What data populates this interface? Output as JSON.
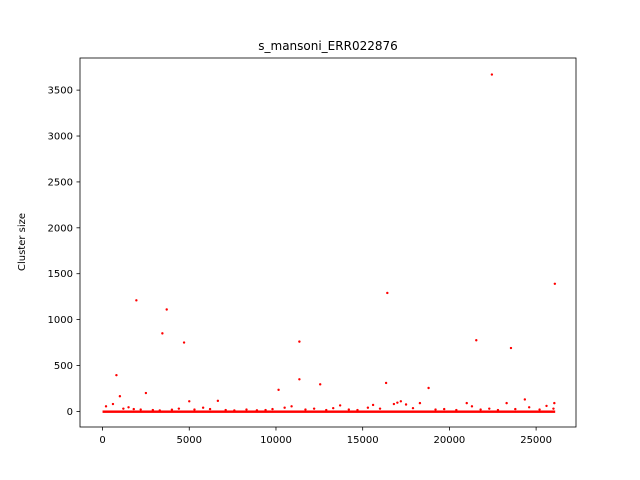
{
  "chart_data": {
    "type": "scatter",
    "title": "s_mansoni_ERR022876",
    "xlabel": "",
    "ylabel": "Cluster size",
    "xlim": [
      -1300,
      27300
    ],
    "ylim": [
      -170,
      3850
    ],
    "xticks": [
      0,
      5000,
      10000,
      15000,
      20000,
      25000
    ],
    "yticks": [
      0,
      500,
      1000,
      1500,
      2000,
      2500,
      3000,
      3500
    ],
    "grid": false,
    "legend": "none",
    "marker_color": "#ff0000",
    "points_x": [
      22450,
      26080,
      16420,
      1950,
      3700,
      3450,
      4700,
      11350,
      21550,
      23550,
      800,
      11350,
      16350,
      12550,
      18800,
      10150,
      2500,
      1000,
      24350,
      5000,
      6650,
      200,
      600,
      1200,
      1500,
      1800,
      2200,
      2900,
      3300,
      4000,
      4400,
      5300,
      5800,
      6200,
      7100,
      7600,
      8300,
      8900,
      9400,
      9800,
      10500,
      10900,
      11700,
      12200,
      12900,
      13300,
      13700,
      14200,
      14700,
      15300,
      15600,
      16000,
      16800,
      17000,
      17200,
      17500,
      17900,
      18300,
      19200,
      19700,
      20400,
      21000,
      21300,
      21800,
      22300,
      22800,
      23300,
      23800,
      24600,
      25200,
      25600,
      26000,
      26050
    ],
    "points_y": [
      3670,
      1390,
      1290,
      1210,
      1110,
      850,
      750,
      760,
      775,
      690,
      395,
      350,
      310,
      295,
      255,
      235,
      200,
      165,
      130,
      110,
      115,
      55,
      80,
      30,
      45,
      25,
      20,
      15,
      10,
      18,
      30,
      20,
      40,
      25,
      15,
      10,
      20,
      12,
      15,
      25,
      40,
      55,
      20,
      30,
      15,
      35,
      65,
      20,
      15,
      40,
      70,
      30,
      80,
      95,
      110,
      75,
      35,
      90,
      20,
      25,
      15,
      90,
      55,
      20,
      30,
      15,
      90,
      25,
      45,
      20,
      60,
      30,
      90
    ]
  }
}
